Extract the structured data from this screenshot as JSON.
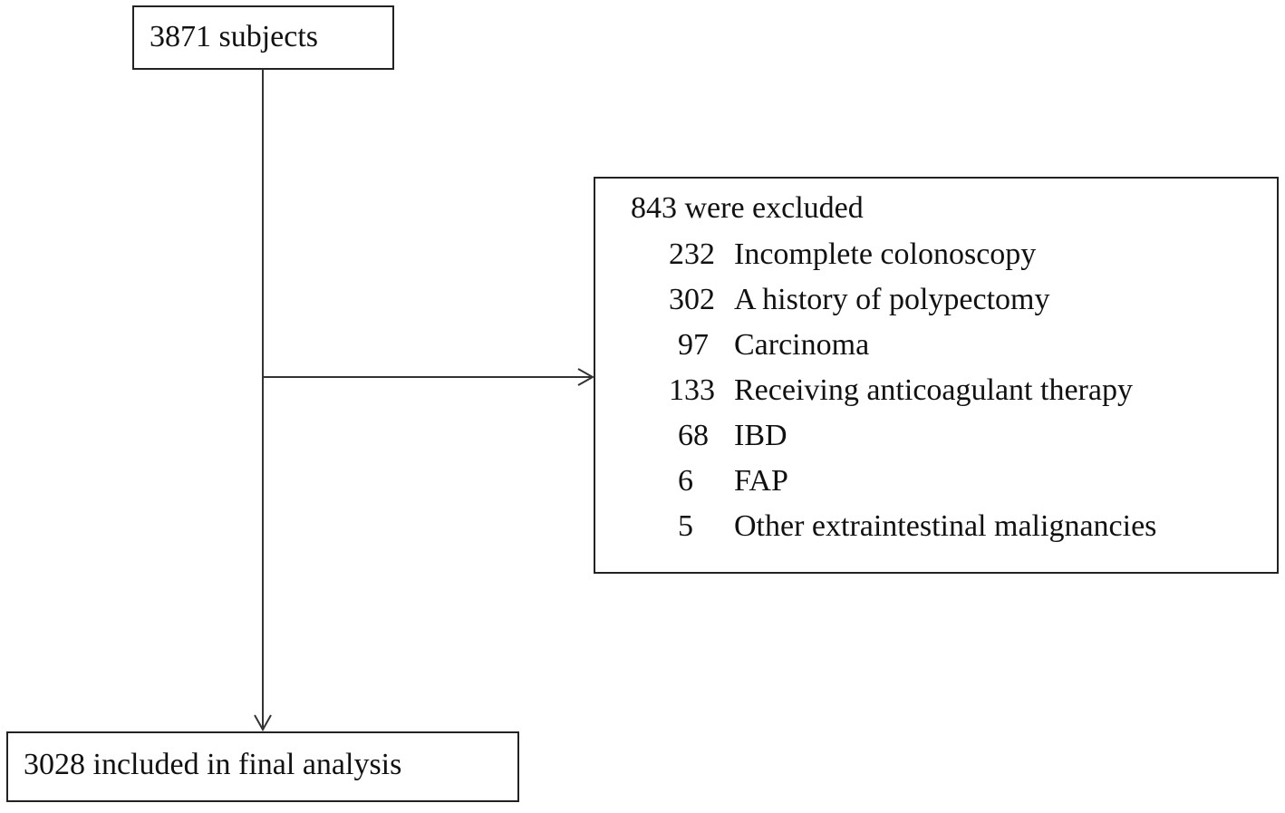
{
  "nodes": [
    {
      "label": "3871 subjects"
    },
    {
      "label": "843 were excluded",
      "items": [
        {
          "count": 232,
          "label": "Incomplete colonoscopy"
        },
        {
          "count": 302,
          "label": "A history of polypectomy"
        },
        {
          "count": 97,
          "label": "Carcinoma"
        },
        {
          "count": 133,
          "label": "Receiving anticoagulant therapy"
        },
        {
          "count": 68,
          "label": "IBD"
        },
        {
          "count": 6,
          "label": "FAP"
        },
        {
          "count": 5,
          "label": "Other extraintestinal malignancies"
        }
      ]
    },
    {
      "label": "3028 included in final analysis"
    }
  ]
}
